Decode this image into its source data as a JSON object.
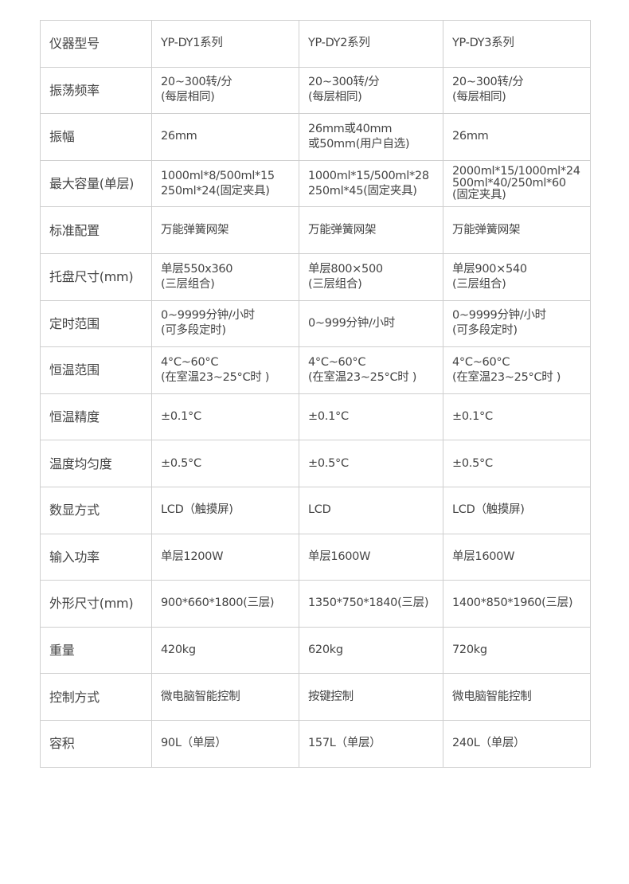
{
  "table": {
    "rows": [
      {
        "label": "仪器型号",
        "cells": [
          "YP-DY1系列",
          "YP-DY2系列",
          "YP-DY3系列"
        ]
      },
      {
        "label": "振荡频率",
        "cells": [
          "20~300转/分\n(每层相同)",
          "20~300转/分\n(每层相同)",
          "20~300转/分\n(每层相同)"
        ]
      },
      {
        "label": "振幅",
        "cells": [
          "26mm",
          "26mm或40mm\n或50mm(用户自选)",
          "26mm"
        ]
      },
      {
        "label": "最大容量(单层)",
        "cells": [
          "1000ml*8/500ml*15\n250ml*24(固定夹具)",
          "1000ml*15/500ml*28\n250ml*45(固定夹具)",
          "2000ml*15/1000ml*24\n500ml*40/250ml*60\n(固定夹具)"
        ]
      },
      {
        "label": "标准配置",
        "cells": [
          "万能弹簧网架",
          "万能弹簧网架",
          "万能弹簧网架"
        ]
      },
      {
        "label": "托盘尺寸(mm)",
        "cells": [
          "单层550x360\n(三层组合)",
          "单层800×500\n(三层组合)",
          "单层900×540\n(三层组合)"
        ]
      },
      {
        "label": "定时范围",
        "cells": [
          "0~9999分钟/小时\n(可多段定时)",
          "0~999分钟/小时",
          "0~9999分钟/小时\n(可多段定时)"
        ]
      },
      {
        "label": "恒温范围",
        "cells": [
          "4°C~60°C\n(在室温23~25°C时 )",
          "4°C~60°C\n(在室温23~25°C时 )",
          "4°C~60°C\n(在室温23~25°C时 )"
        ]
      },
      {
        "label": "恒温精度",
        "cells": [
          "±0.1°C",
          "±0.1°C",
          "±0.1°C"
        ]
      },
      {
        "label": "温度均匀度",
        "cells": [
          "±0.5°C",
          "±0.5°C",
          "±0.5°C"
        ]
      },
      {
        "label": "数显方式",
        "cells": [
          "LCD（触摸屏)",
          "LCD",
          "LCD（触摸屏)"
        ]
      },
      {
        "label": "输入功率",
        "cells": [
          "单层1200W",
          "单层1600W",
          "单层1600W"
        ]
      },
      {
        "label": "外形尺寸(mm)",
        "cells": [
          "900*660*1800(三层)",
          "1350*750*1840(三层)",
          "1400*850*1960(三层)"
        ]
      },
      {
        "label": "重量",
        "cells": [
          "420kg",
          "620kg",
          "720kg"
        ]
      },
      {
        "label": "控制方式",
        "cells": [
          "微电脑智能控制",
          "按键控制",
          "微电脑智能控制"
        ]
      },
      {
        "label": "容积",
        "cells": [
          "90L（单层）",
          "157L（单层）",
          "240L（单层）"
        ]
      }
    ]
  }
}
